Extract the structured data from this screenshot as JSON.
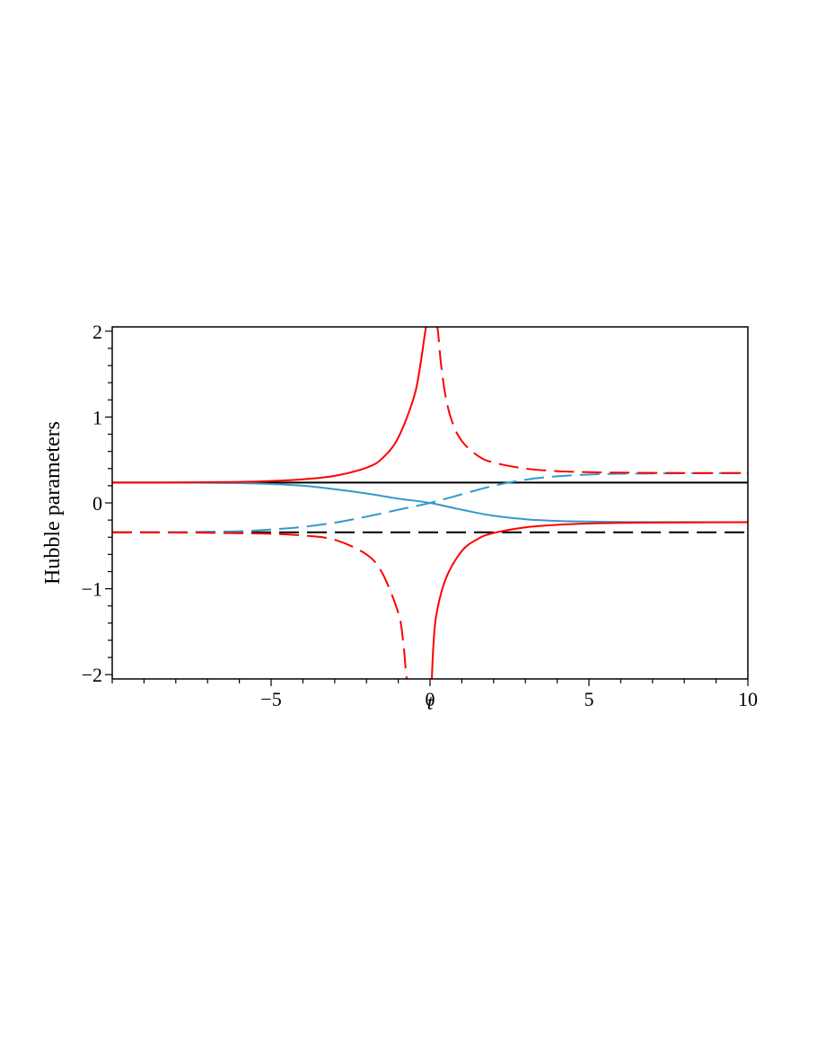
{
  "chart_data": {
    "type": "line",
    "xlabel": "t",
    "ylabel": "Hubble parameters",
    "xlim": [
      -10,
      10
    ],
    "ylim": [
      -2.05,
      2.05
    ],
    "x_ticks": [
      {
        "value": -5,
        "label": "−5"
      },
      {
        "value": 0,
        "label": "0"
      },
      {
        "value": 5,
        "label": "5"
      },
      {
        "value": 10,
        "label": "10"
      }
    ],
    "y_ticks": [
      {
        "value": 2,
        "label": "2"
      },
      {
        "value": 1,
        "label": "1"
      },
      {
        "value": 0,
        "label": "0"
      },
      {
        "value": -1,
        "label": "−1"
      },
      {
        "value": -2,
        "label": "−2"
      }
    ],
    "grid": false,
    "series": [
      {
        "style": "solid",
        "color": "#000000",
        "x": [
          -10,
          10
        ],
        "y": [
          0.236,
          0.236
        ]
      },
      {
        "style": "dashed",
        "color": "#000000",
        "x": [
          -10,
          10
        ],
        "y": [
          -0.342,
          -0.342
        ]
      },
      {
        "style": "solid",
        "color": "#3399cc",
        "x": [
          -10,
          -8,
          -6,
          -5,
          -4,
          -3,
          -2,
          -1,
          0,
          1,
          2,
          3,
          4,
          5,
          6,
          8,
          10
        ],
        "y": [
          0.236,
          0.235,
          0.23,
          0.22,
          0.2,
          0.16,
          0.11,
          0.05,
          0.0,
          -0.08,
          -0.15,
          -0.19,
          -0.21,
          -0.218,
          -0.222,
          -0.224,
          -0.225
        ]
      },
      {
        "style": "dashed",
        "color": "#3399cc",
        "x": [
          -10,
          -8,
          -6,
          -5,
          -4,
          -3,
          -2,
          -1,
          0,
          1,
          2,
          3,
          4,
          5,
          6,
          8,
          10
        ],
        "y": [
          -0.342,
          -0.34,
          -0.33,
          -0.31,
          -0.28,
          -0.23,
          -0.16,
          -0.08,
          0.0,
          0.1,
          0.2,
          0.27,
          0.31,
          0.33,
          0.34,
          0.345,
          0.347
        ]
      },
      {
        "style": "solid",
        "color": "#ff0000",
        "x": [
          -10,
          -8,
          -6,
          -5,
          -4,
          -3,
          -2,
          -1.5,
          -1,
          -0.5,
          -0.3,
          -0.15,
          -0.1,
          0.05,
          0.1,
          0.2,
          0.5,
          1,
          1.5,
          2,
          3,
          4,
          5,
          6,
          8,
          10
        ],
        "y": [
          0.236,
          0.238,
          0.245,
          0.255,
          0.275,
          0.315,
          0.41,
          0.52,
          0.76,
          1.24,
          1.62,
          2.0,
          2.1,
          -2.1,
          -1.7,
          -1.3,
          -0.88,
          -0.56,
          -0.42,
          -0.35,
          -0.285,
          -0.255,
          -0.24,
          -0.232,
          -0.227,
          -0.225
        ]
      },
      {
        "style": "dashed",
        "color": "#ff0000",
        "x": [
          -10,
          -8,
          -6,
          -5,
          -4,
          -3,
          -2,
          -1.5,
          -1,
          -0.85,
          -0.75,
          -0.7,
          0.2,
          0.25,
          0.35,
          0.5,
          0.7,
          1,
          1.5,
          2,
          3,
          4,
          5,
          6,
          8,
          10
        ],
        "y": [
          -0.342,
          -0.345,
          -0.352,
          -0.36,
          -0.38,
          -0.43,
          -0.6,
          -0.82,
          -1.28,
          -1.6,
          -2.0,
          -2.1,
          2.1,
          2.0,
          1.6,
          1.22,
          0.94,
          0.72,
          0.55,
          0.47,
          0.4,
          0.37,
          0.358,
          0.352,
          0.348,
          0.347
        ]
      }
    ]
  }
}
